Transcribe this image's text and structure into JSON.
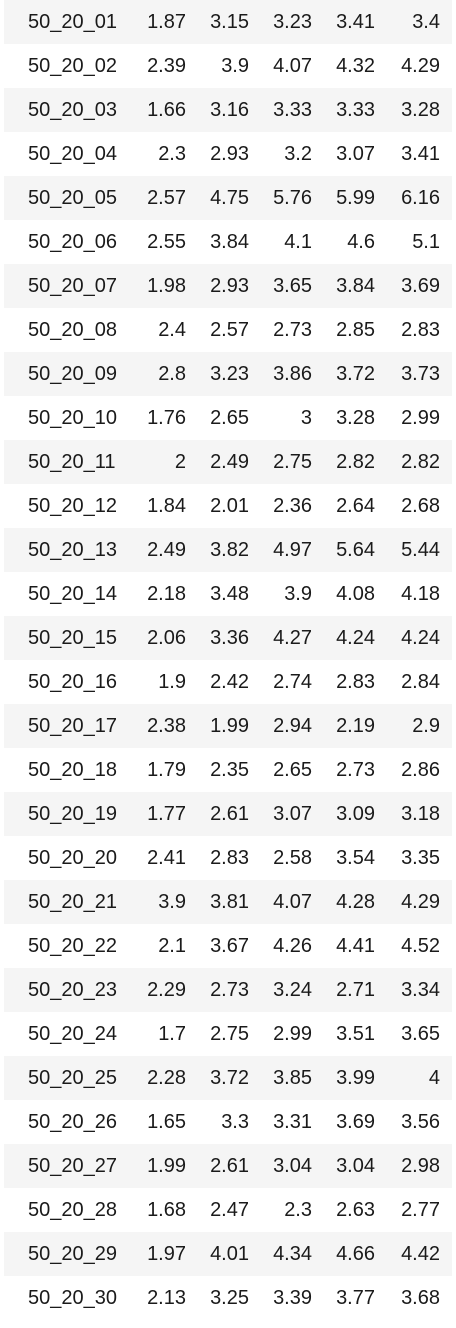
{
  "table": {
    "rows": [
      [
        "50_20_01",
        "1.87",
        "3.15",
        "3.23",
        "3.41",
        "3.4"
      ],
      [
        "50_20_02",
        "2.39",
        "3.9",
        "4.07",
        "4.32",
        "4.29"
      ],
      [
        "50_20_03",
        "1.66",
        "3.16",
        "3.33",
        "3.33",
        "3.28"
      ],
      [
        "50_20_04",
        "2.3",
        "2.93",
        "3.2",
        "3.07",
        "3.41"
      ],
      [
        "50_20_05",
        "2.57",
        "4.75",
        "5.76",
        "5.99",
        "6.16"
      ],
      [
        "50_20_06",
        "2.55",
        "3.84",
        "4.1",
        "4.6",
        "5.1"
      ],
      [
        "50_20_07",
        "1.98",
        "2.93",
        "3.65",
        "3.84",
        "3.69"
      ],
      [
        "50_20_08",
        "2.4",
        "2.57",
        "2.73",
        "2.85",
        "2.83"
      ],
      [
        "50_20_09",
        "2.8",
        "3.23",
        "3.86",
        "3.72",
        "3.73"
      ],
      [
        "50_20_10",
        "1.76",
        "2.65",
        "3",
        "3.28",
        "2.99"
      ],
      [
        "50_20_11",
        "2",
        "2.49",
        "2.75",
        "2.82",
        "2.82"
      ],
      [
        "50_20_12",
        "1.84",
        "2.01",
        "2.36",
        "2.64",
        "2.68"
      ],
      [
        "50_20_13",
        "2.49",
        "3.82",
        "4.97",
        "5.64",
        "5.44"
      ],
      [
        "50_20_14",
        "2.18",
        "3.48",
        "3.9",
        "4.08",
        "4.18"
      ],
      [
        "50_20_15",
        "2.06",
        "3.36",
        "4.27",
        "4.24",
        "4.24"
      ],
      [
        "50_20_16",
        "1.9",
        "2.42",
        "2.74",
        "2.83",
        "2.84"
      ],
      [
        "50_20_17",
        "2.38",
        "1.99",
        "2.94",
        "2.19",
        "2.9"
      ],
      [
        "50_20_18",
        "1.79",
        "2.35",
        "2.65",
        "2.73",
        "2.86"
      ],
      [
        "50_20_19",
        "1.77",
        "2.61",
        "3.07",
        "3.09",
        "3.18"
      ],
      [
        "50_20_20",
        "2.41",
        "2.83",
        "2.58",
        "3.54",
        "3.35"
      ],
      [
        "50_20_21",
        "3.9",
        "3.81",
        "4.07",
        "4.28",
        "4.29"
      ],
      [
        "50_20_22",
        "2.1",
        "3.67",
        "4.26",
        "4.41",
        "4.52"
      ],
      [
        "50_20_23",
        "2.29",
        "2.73",
        "3.24",
        "2.71",
        "3.34"
      ],
      [
        "50_20_24",
        "1.7",
        "2.75",
        "2.99",
        "3.51",
        "3.65"
      ],
      [
        "50_20_25",
        "2.28",
        "3.72",
        "3.85",
        "3.99",
        "4"
      ],
      [
        "50_20_26",
        "1.65",
        "3.3",
        "3.31",
        "3.69",
        "3.56"
      ],
      [
        "50_20_27",
        "1.99",
        "2.61",
        "3.04",
        "3.04",
        "2.98"
      ],
      [
        "50_20_28",
        "1.68",
        "2.47",
        "2.3",
        "2.63",
        "2.77"
      ],
      [
        "50_20_29",
        "1.97",
        "4.01",
        "4.34",
        "4.66",
        "4.42"
      ],
      [
        "50_20_30",
        "2.13",
        "3.25",
        "3.39",
        "3.77",
        "3.68"
      ]
    ]
  }
}
